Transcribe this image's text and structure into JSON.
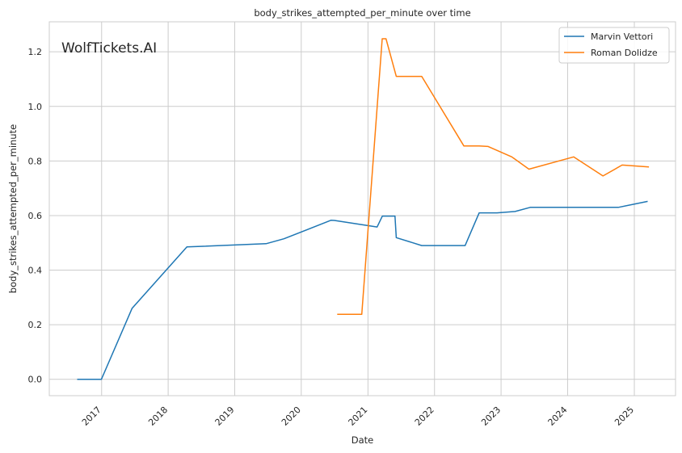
{
  "chart_data": {
    "type": "line",
    "title": "body_strikes_attempted_per_minute over time",
    "xlabel": "Date",
    "ylabel": "body_strikes_attempted_per_minute",
    "watermark": "WolfTickets.AI",
    "x_range": [
      "2016-03-20",
      "2025-08-15"
    ],
    "ylim": [
      -0.06,
      1.31
    ],
    "x_ticks": [
      "2017-01-01",
      "2018-01-01",
      "2019-01-01",
      "2020-01-01",
      "2021-01-01",
      "2022-01-01",
      "2023-01-01",
      "2024-01-01",
      "2025-01-01"
    ],
    "x_tick_labels": [
      "2017",
      "2018",
      "2019",
      "2020",
      "2021",
      "2022",
      "2023",
      "2024",
      "2025"
    ],
    "y_ticks": [
      0.0,
      0.2,
      0.4,
      0.6,
      0.8,
      1.0,
      1.2
    ],
    "y_tick_labels": [
      "0.0",
      "0.2",
      "0.4",
      "0.6",
      "0.8",
      "1.0",
      "1.2"
    ],
    "grid": true,
    "legend_position": "top-right",
    "series": [
      {
        "name": "Marvin Vettori",
        "color": "#1f77b4",
        "points": [
          [
            "2016-08-20",
            0.0
          ],
          [
            "2016-12-31",
            0.0
          ],
          [
            "2017-06-17",
            0.26
          ],
          [
            "2018-04-14",
            0.485
          ],
          [
            "2019-06-22",
            0.497
          ],
          [
            "2019-09-28",
            0.515
          ],
          [
            "2020-06-13",
            0.583
          ],
          [
            "2020-07-01",
            0.582
          ],
          [
            "2021-02-20",
            0.558
          ],
          [
            "2021-03-21",
            0.598
          ],
          [
            "2021-05-29",
            0.598
          ],
          [
            "2021-06-05",
            0.519
          ],
          [
            "2021-10-23",
            0.49
          ],
          [
            "2022-06-18",
            0.49
          ],
          [
            "2022-09-03",
            0.61
          ],
          [
            "2022-12-10",
            0.61
          ],
          [
            "2023-03-19",
            0.615
          ],
          [
            "2023-06-10",
            0.63
          ],
          [
            "2024-10-05",
            0.63
          ],
          [
            "2025-03-15",
            0.652
          ]
        ]
      },
      {
        "name": "Roman Dolidze",
        "color": "#ff7f0e",
        "points": [
          [
            "2020-07-16",
            0.238
          ],
          [
            "2020-11-28",
            0.238
          ],
          [
            "2021-03-20",
            1.248
          ],
          [
            "2021-04-10",
            1.248
          ],
          [
            "2021-06-05",
            1.11
          ],
          [
            "2021-10-23",
            1.11
          ],
          [
            "2022-06-11",
            0.855
          ],
          [
            "2022-09-03",
            0.855
          ],
          [
            "2022-10-22",
            0.853
          ],
          [
            "2023-03-01",
            0.815
          ],
          [
            "2023-06-03",
            0.77
          ],
          [
            "2024-02-03",
            0.815
          ],
          [
            "2024-07-13",
            0.745
          ],
          [
            "2024-10-26",
            0.785
          ],
          [
            "2025-03-22",
            0.778
          ]
        ]
      }
    ]
  }
}
